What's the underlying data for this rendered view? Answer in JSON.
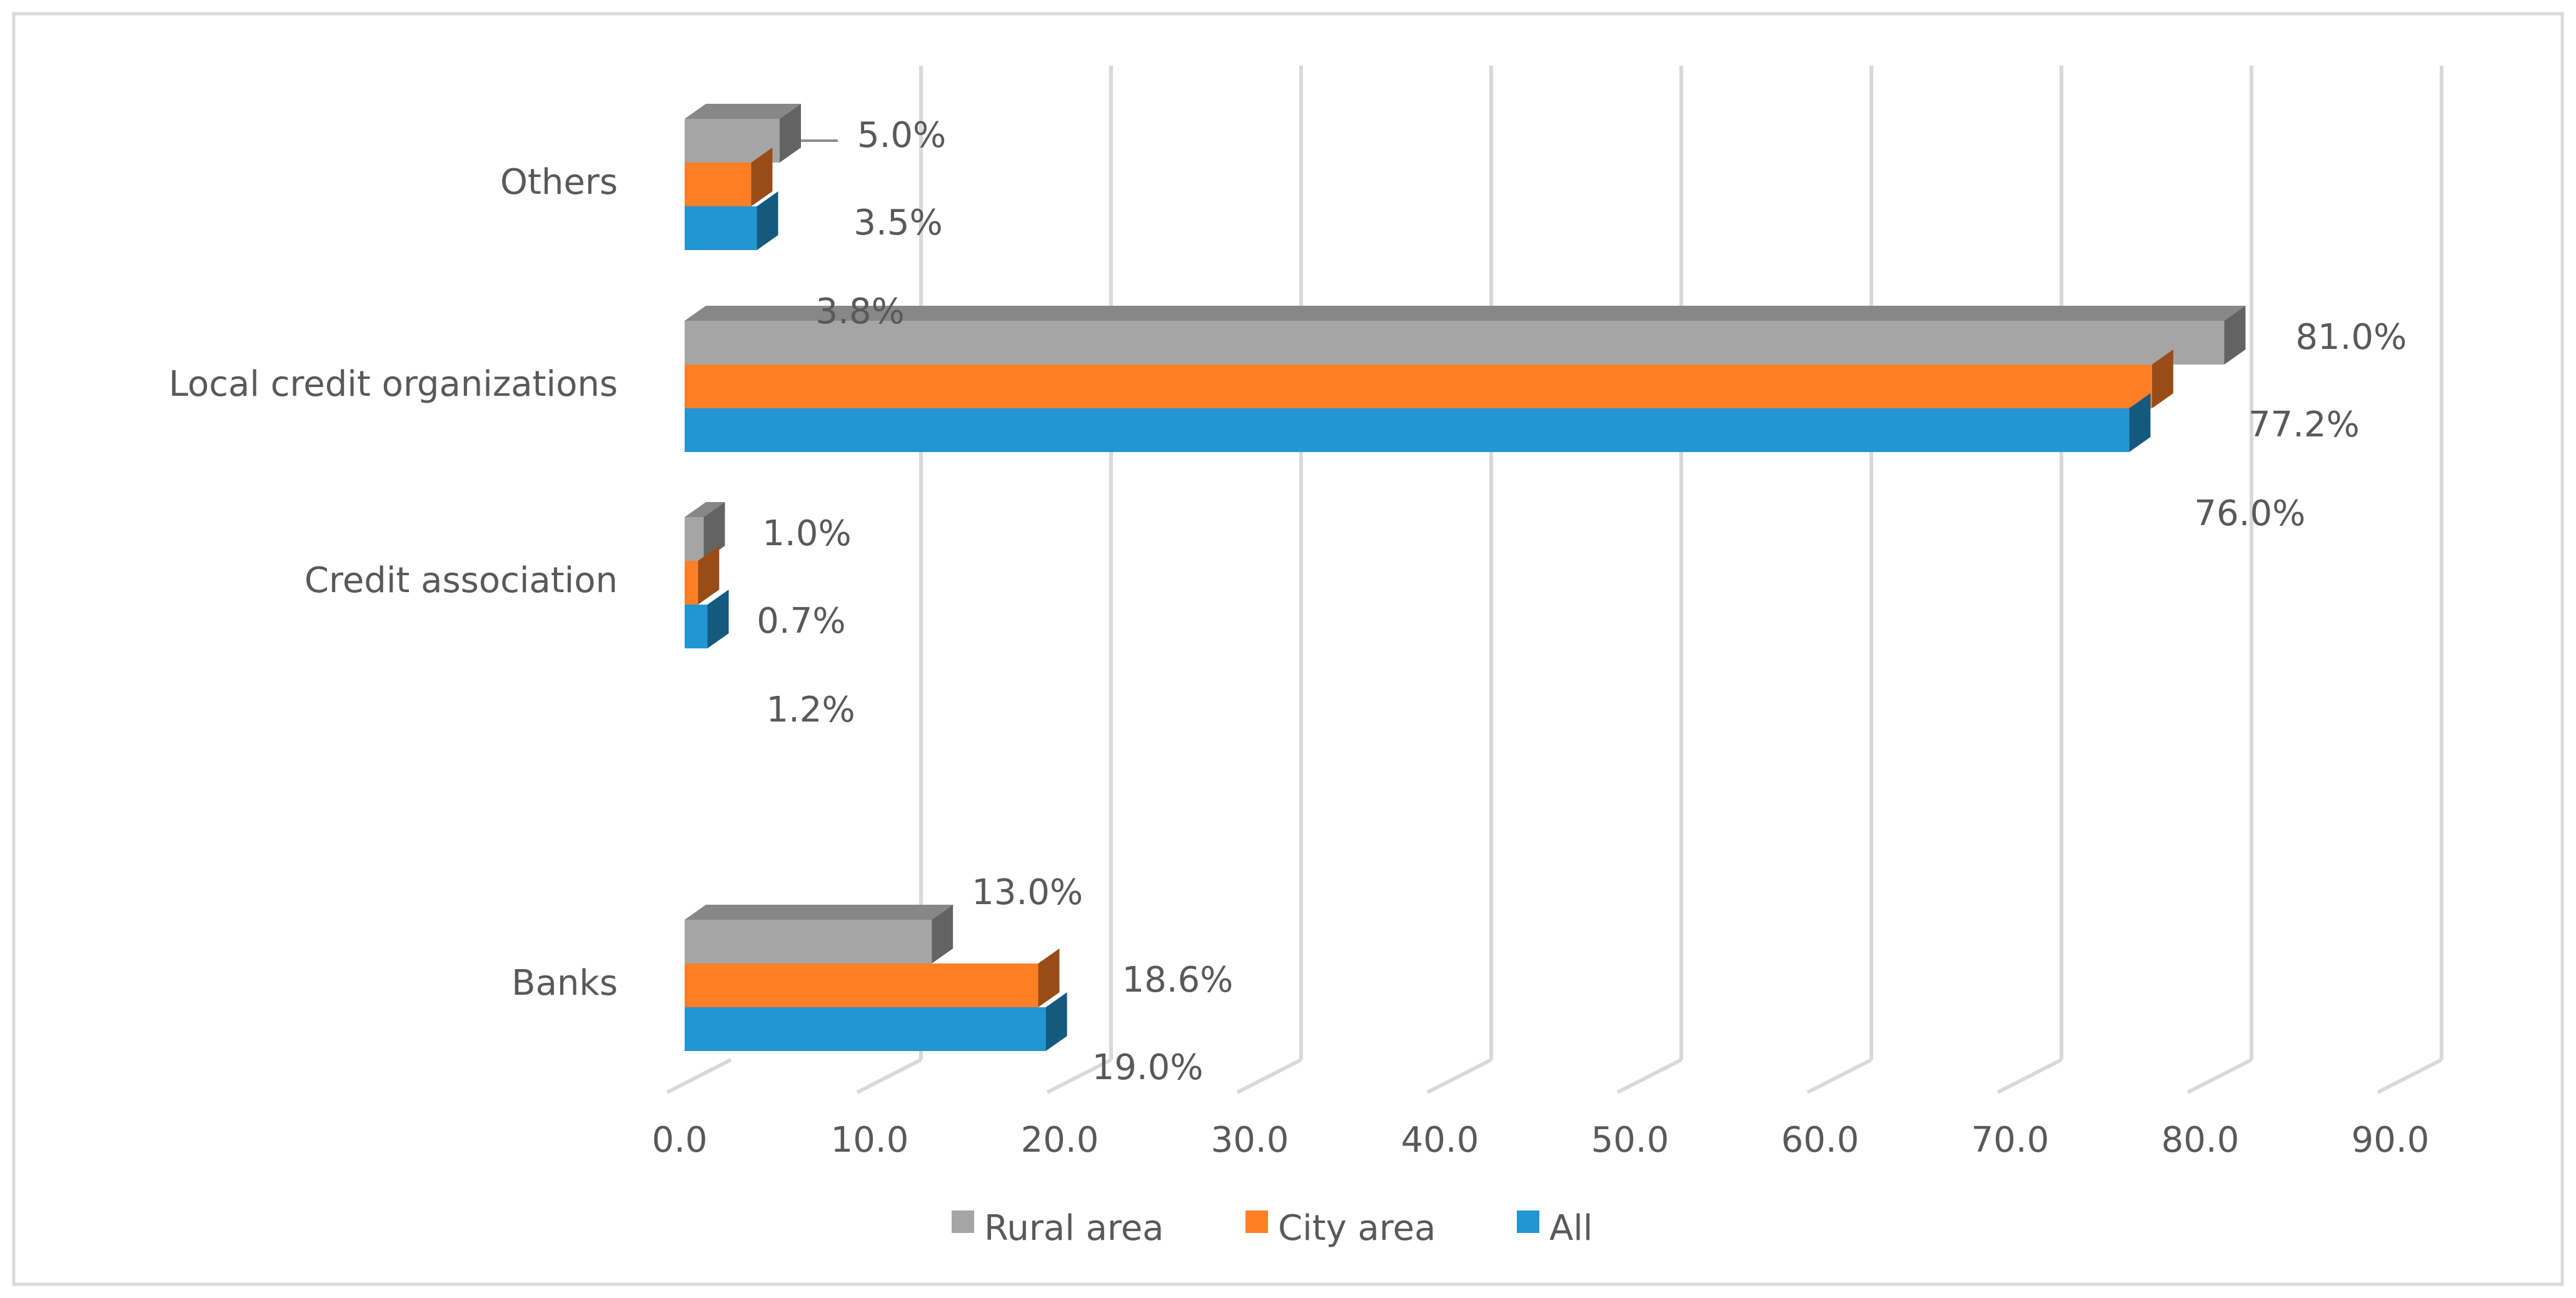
{
  "chart_data": {
    "type": "bar",
    "orientation": "horizontal",
    "style": "3d-clustered",
    "title": "",
    "xlabel": "",
    "ylabel": "",
    "xlim": [
      0,
      90
    ],
    "x_ticks": [
      "0.0",
      "10.0",
      "20.0",
      "30.0",
      "40.0",
      "50.0",
      "60.0",
      "70.0",
      "80.0",
      "90.0"
    ],
    "grid": true,
    "categories": [
      "Banks",
      "Credit association",
      "Local credit organizations",
      "Others"
    ],
    "series": [
      {
        "name": "Rural area",
        "color": "#a5a5a5",
        "values": [
          13.0,
          1.0,
          81.0,
          5.0
        ],
        "labels": [
          "13.0%",
          "1.0%",
          "81.0%",
          "5.0%"
        ]
      },
      {
        "name": "City area",
        "color": "#ff7f27",
        "values": [
          18.6,
          0.7,
          77.2,
          3.5
        ],
        "labels": [
          "18.6%",
          "0.7%",
          "77.2%",
          "3.5%"
        ]
      },
      {
        "name": "All",
        "color": "#2196d3",
        "values": [
          19.0,
          1.2,
          76.0,
          3.8
        ],
        "labels": [
          "19.0%",
          "1.2%",
          "76.0%",
          "3.8%"
        ]
      }
    ],
    "legend_position": "bottom"
  }
}
